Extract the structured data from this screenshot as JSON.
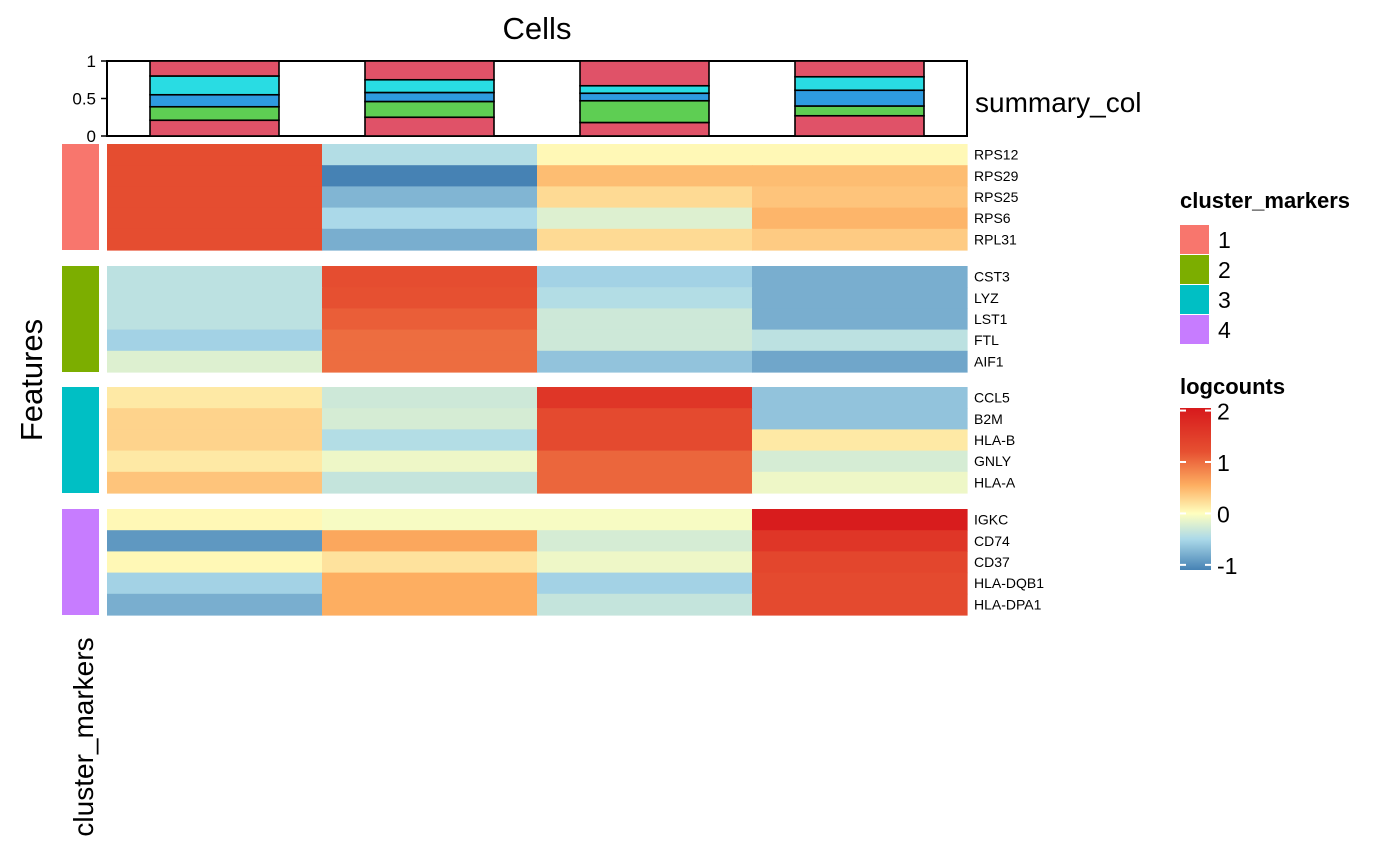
{
  "chart_data": {
    "type": "heatmap",
    "title": "Cells",
    "ylabel": "Features",
    "row_annotation_label": "cluster_markers",
    "top_annotation": {
      "label": "summary_col",
      "ylim": [
        0,
        1
      ],
      "yticks": [
        "0",
        "0.5",
        "1"
      ],
      "stack_colors": [
        "#E05268",
        "#5ECE53",
        "#2E9BE0",
        "#29DCE3",
        "#E05268"
      ],
      "columns": [
        {
          "segments": [
            0.21,
            0.18,
            0.16,
            0.25,
            0.2
          ]
        },
        {
          "segments": [
            0.25,
            0.21,
            0.12,
            0.17,
            0.25
          ]
        },
        {
          "segments": [
            0.18,
            0.29,
            0.1,
            0.1,
            0.33
          ]
        },
        {
          "segments": [
            0.27,
            0.13,
            0.21,
            0.18,
            0.21
          ]
        }
      ]
    },
    "row_groups": [
      {
        "cluster": "1",
        "color": "#F8766D",
        "rows": [
          {
            "name": "RPS12",
            "values": [
              1.25,
              -0.45,
              0.05,
              0.05
            ]
          },
          {
            "name": "RPS29",
            "values": [
              1.25,
              -1.1,
              0.45,
              0.45
            ]
          },
          {
            "name": "RPS25",
            "values": [
              1.25,
              -0.75,
              0.25,
              0.4
            ]
          },
          {
            "name": "RPS6",
            "values": [
              1.25,
              -0.5,
              -0.2,
              0.5
            ]
          },
          {
            "name": "RPL31",
            "values": [
              1.25,
              -0.8,
              0.25,
              0.35
            ]
          }
        ]
      },
      {
        "cluster": "2",
        "color": "#7CAE00",
        "rows": [
          {
            "name": "CST3",
            "values": [
              -0.4,
              1.25,
              -0.55,
              -0.8
            ]
          },
          {
            "name": "LYZ",
            "values": [
              -0.4,
              1.2,
              -0.45,
              -0.8
            ]
          },
          {
            "name": "LST1",
            "values": [
              -0.4,
              1.1,
              -0.3,
              -0.8
            ]
          },
          {
            "name": "FTL",
            "values": [
              -0.55,
              1.0,
              -0.3,
              -0.4
            ]
          },
          {
            "name": "AIF1",
            "values": [
              -0.2,
              1.0,
              -0.65,
              -0.85
            ]
          }
        ]
      },
      {
        "cluster": "3",
        "color": "#00BFC4",
        "rows": [
          {
            "name": "CCL5",
            "values": [
              0.15,
              -0.3,
              1.6,
              -0.65
            ]
          },
          {
            "name": "B2M",
            "values": [
              0.3,
              -0.25,
              1.3,
              -0.65
            ]
          },
          {
            "name": "HLA-B",
            "values": [
              0.3,
              -0.45,
              1.3,
              0.15
            ]
          },
          {
            "name": "GNLY",
            "values": [
              0.15,
              -0.1,
              1.05,
              -0.25
            ]
          },
          {
            "name": "HLA-A",
            "values": [
              0.4,
              -0.35,
              1.05,
              -0.1
            ]
          }
        ]
      },
      {
        "cluster": "4",
        "color": "#C77CFF",
        "rows": [
          {
            "name": "IGKC",
            "values": [
              0.05,
              -0.05,
              -0.05,
              2.0
            ]
          },
          {
            "name": "CD74",
            "values": [
              -0.95,
              0.6,
              -0.25,
              1.6
            ]
          },
          {
            "name": "CD37",
            "values": [
              0.05,
              0.2,
              -0.1,
              1.35
            ]
          },
          {
            "name": "HLA-DQB1",
            "values": [
              -0.55,
              0.55,
              -0.55,
              1.3
            ]
          },
          {
            "name": "HLA-DPA1",
            "values": [
              -0.8,
              0.55,
              -0.35,
              1.3
            ]
          }
        ]
      }
    ],
    "legends": {
      "cluster_markers": {
        "title": "cluster_markers",
        "items": [
          {
            "label": "1",
            "color": "#F8766D"
          },
          {
            "label": "2",
            "color": "#7CAE00"
          },
          {
            "label": "3",
            "color": "#00BFC4"
          },
          {
            "label": "4",
            "color": "#C77CFF"
          }
        ]
      },
      "logcounts": {
        "title": "logcounts",
        "range": [
          -1.1,
          2.05
        ],
        "ticks": [
          {
            "label": "2",
            "value": 2
          },
          {
            "label": "1",
            "value": 1
          },
          {
            "label": "0",
            "value": 0
          },
          {
            "label": "-1",
            "value": -1
          }
        ],
        "colors": [
          "#4682B4",
          "#ABD9E9",
          "#FFFFBF",
          "#FDAE61",
          "#E65031",
          "#D7191C"
        ],
        "color_values": [
          -1.1,
          -0.5,
          0,
          0.55,
          1.2,
          2.05
        ]
      }
    }
  }
}
